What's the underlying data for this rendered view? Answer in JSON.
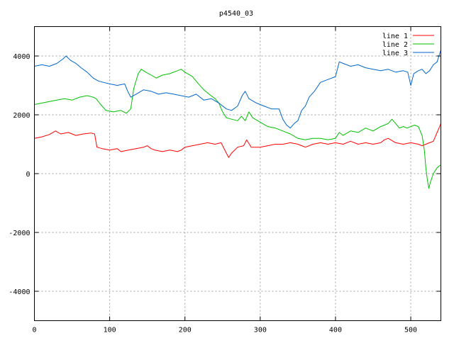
{
  "chart_data": {
    "type": "line",
    "title": "p4540_03",
    "xlabel": "",
    "ylabel": "",
    "xlim": [
      0,
      540
    ],
    "ylim": [
      -5000,
      5000
    ],
    "xticks": [
      0,
      100,
      200,
      300,
      400,
      500
    ],
    "yticks": [
      -4000,
      -2000,
      0,
      2000,
      4000
    ],
    "grid": true,
    "legend_position": "top-right",
    "series": [
      {
        "name": "line 1",
        "color": "#ff0000",
        "points": [
          [
            0,
            1200
          ],
          [
            10,
            1250
          ],
          [
            20,
            1330
          ],
          [
            28,
            1450
          ],
          [
            35,
            1350
          ],
          [
            45,
            1400
          ],
          [
            55,
            1300
          ],
          [
            65,
            1350
          ],
          [
            75,
            1380
          ],
          [
            80,
            1350
          ],
          [
            83,
            900
          ],
          [
            90,
            850
          ],
          [
            100,
            800
          ],
          [
            110,
            850
          ],
          [
            115,
            750
          ],
          [
            125,
            800
          ],
          [
            135,
            850
          ],
          [
            145,
            900
          ],
          [
            150,
            950
          ],
          [
            155,
            850
          ],
          [
            160,
            800
          ],
          [
            170,
            750
          ],
          [
            180,
            800
          ],
          [
            190,
            750
          ],
          [
            195,
            800
          ],
          [
            200,
            900
          ],
          [
            210,
            950
          ],
          [
            220,
            1000
          ],
          [
            230,
            1050
          ],
          [
            240,
            1000
          ],
          [
            248,
            1050
          ],
          [
            255,
            700
          ],
          [
            258,
            550
          ],
          [
            262,
            700
          ],
          [
            270,
            900
          ],
          [
            278,
            950
          ],
          [
            282,
            1150
          ],
          [
            288,
            900
          ],
          [
            300,
            900
          ],
          [
            310,
            950
          ],
          [
            320,
            1000
          ],
          [
            330,
            1000
          ],
          [
            340,
            1050
          ],
          [
            350,
            1000
          ],
          [
            355,
            950
          ],
          [
            360,
            900
          ],
          [
            370,
            1000
          ],
          [
            380,
            1050
          ],
          [
            390,
            1000
          ],
          [
            400,
            1050
          ],
          [
            410,
            1000
          ],
          [
            420,
            1100
          ],
          [
            430,
            1000
          ],
          [
            440,
            1050
          ],
          [
            450,
            1000
          ],
          [
            460,
            1050
          ],
          [
            465,
            1150
          ],
          [
            470,
            1200
          ],
          [
            480,
            1050
          ],
          [
            490,
            1000
          ],
          [
            500,
            1050
          ],
          [
            510,
            1000
          ],
          [
            515,
            950
          ],
          [
            520,
            1000
          ],
          [
            525,
            1050
          ],
          [
            530,
            1100
          ],
          [
            535,
            1400
          ],
          [
            540,
            1700
          ]
        ]
      },
      {
        "name": "line 2",
        "color": "#00c000",
        "points": [
          [
            0,
            2350
          ],
          [
            10,
            2400
          ],
          [
            20,
            2450
          ],
          [
            30,
            2500
          ],
          [
            40,
            2550
          ],
          [
            50,
            2500
          ],
          [
            60,
            2600
          ],
          [
            70,
            2650
          ],
          [
            78,
            2600
          ],
          [
            82,
            2550
          ],
          [
            88,
            2350
          ],
          [
            95,
            2150
          ],
          [
            105,
            2100
          ],
          [
            115,
            2150
          ],
          [
            122,
            2050
          ],
          [
            128,
            2200
          ],
          [
            132,
            2900
          ],
          [
            138,
            3400
          ],
          [
            142,
            3550
          ],
          [
            148,
            3450
          ],
          [
            155,
            3350
          ],
          [
            162,
            3250
          ],
          [
            170,
            3350
          ],
          [
            180,
            3400
          ],
          [
            190,
            3500
          ],
          [
            195,
            3550
          ],
          [
            200,
            3450
          ],
          [
            210,
            3300
          ],
          [
            218,
            3050
          ],
          [
            225,
            2850
          ],
          [
            232,
            2700
          ],
          [
            240,
            2550
          ],
          [
            245,
            2400
          ],
          [
            250,
            2100
          ],
          [
            255,
            1900
          ],
          [
            262,
            1850
          ],
          [
            270,
            1800
          ],
          [
            275,
            1950
          ],
          [
            280,
            1800
          ],
          [
            285,
            2100
          ],
          [
            290,
            1900
          ],
          [
            300,
            1750
          ],
          [
            310,
            1600
          ],
          [
            320,
            1550
          ],
          [
            330,
            1450
          ],
          [
            340,
            1350
          ],
          [
            350,
            1200
          ],
          [
            360,
            1150
          ],
          [
            370,
            1200
          ],
          [
            380,
            1200
          ],
          [
            390,
            1150
          ],
          [
            400,
            1200
          ],
          [
            405,
            1400
          ],
          [
            410,
            1300
          ],
          [
            420,
            1450
          ],
          [
            430,
            1400
          ],
          [
            440,
            1550
          ],
          [
            450,
            1450
          ],
          [
            460,
            1600
          ],
          [
            470,
            1700
          ],
          [
            475,
            1850
          ],
          [
            480,
            1700
          ],
          [
            485,
            1550
          ],
          [
            490,
            1600
          ],
          [
            495,
            1550
          ],
          [
            505,
            1650
          ],
          [
            510,
            1600
          ],
          [
            515,
            1300
          ],
          [
            518,
            800
          ],
          [
            520,
            200
          ],
          [
            522,
            -200
          ],
          [
            524,
            -500
          ],
          [
            526,
            -300
          ],
          [
            530,
            0
          ],
          [
            535,
            200
          ],
          [
            540,
            300
          ]
        ]
      },
      {
        "name": "line 3",
        "color": "#0066cc",
        "points": [
          [
            0,
            3650
          ],
          [
            10,
            3700
          ],
          [
            20,
            3650
          ],
          [
            30,
            3750
          ],
          [
            38,
            3900
          ],
          [
            42,
            4000
          ],
          [
            48,
            3850
          ],
          [
            55,
            3750
          ],
          [
            62,
            3600
          ],
          [
            70,
            3450
          ],
          [
            78,
            3250
          ],
          [
            85,
            3150
          ],
          [
            92,
            3100
          ],
          [
            100,
            3050
          ],
          [
            110,
            3000
          ],
          [
            120,
            3050
          ],
          [
            124,
            2800
          ],
          [
            128,
            2600
          ],
          [
            135,
            2700
          ],
          [
            145,
            2850
          ],
          [
            155,
            2800
          ],
          [
            165,
            2700
          ],
          [
            175,
            2750
          ],
          [
            185,
            2700
          ],
          [
            195,
            2650
          ],
          [
            205,
            2600
          ],
          [
            215,
            2700
          ],
          [
            225,
            2500
          ],
          [
            235,
            2550
          ],
          [
            245,
            2400
          ],
          [
            255,
            2200
          ],
          [
            262,
            2150
          ],
          [
            270,
            2300
          ],
          [
            276,
            2650
          ],
          [
            280,
            2800
          ],
          [
            285,
            2550
          ],
          [
            295,
            2400
          ],
          [
            305,
            2300
          ],
          [
            315,
            2200
          ],
          [
            325,
            2200
          ],
          [
            330,
            1850
          ],
          [
            335,
            1650
          ],
          [
            340,
            1550
          ],
          [
            345,
            1700
          ],
          [
            350,
            1800
          ],
          [
            355,
            2150
          ],
          [
            360,
            2300
          ],
          [
            365,
            2600
          ],
          [
            372,
            2800
          ],
          [
            380,
            3100
          ],
          [
            390,
            3200
          ],
          [
            400,
            3300
          ],
          [
            405,
            3800
          ],
          [
            410,
            3750
          ],
          [
            420,
            3650
          ],
          [
            430,
            3700
          ],
          [
            440,
            3600
          ],
          [
            450,
            3550
          ],
          [
            460,
            3500
          ],
          [
            470,
            3550
          ],
          [
            480,
            3450
          ],
          [
            490,
            3500
          ],
          [
            496,
            3450
          ],
          [
            500,
            3000
          ],
          [
            504,
            3400
          ],
          [
            510,
            3500
          ],
          [
            515,
            3550
          ],
          [
            520,
            3400
          ],
          [
            525,
            3500
          ],
          [
            530,
            3700
          ],
          [
            535,
            3800
          ],
          [
            538,
            4050
          ],
          [
            540,
            4200
          ]
        ]
      }
    ]
  }
}
